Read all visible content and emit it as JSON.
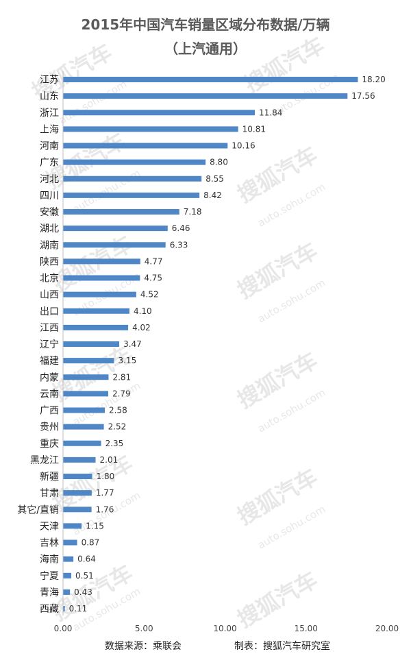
{
  "chart_data": {
    "type": "bar",
    "orientation": "horizontal",
    "title": "2015年中国汽车销量区域分布数据/万辆",
    "subtitle": "（上汽通用）",
    "categories": [
      "江苏",
      "山东",
      "浙江",
      "上海",
      "河南",
      "广东",
      "河北",
      "四川",
      "安徽",
      "湖北",
      "湖南",
      "陕西",
      "北京",
      "山西",
      "出口",
      "江西",
      "辽宁",
      "福建",
      "内蒙",
      "云南",
      "广西",
      "贵州",
      "重庆",
      "黑龙江",
      "新疆",
      "甘肃",
      "其它/直销",
      "天津",
      "吉林",
      "海南",
      "宁夏",
      "青海",
      "西藏"
    ],
    "values": [
      18.2,
      17.56,
      11.84,
      10.81,
      10.16,
      8.8,
      8.55,
      8.42,
      7.18,
      6.46,
      6.33,
      4.77,
      4.75,
      4.52,
      4.1,
      4.02,
      3.47,
      3.15,
      2.81,
      2.79,
      2.58,
      2.52,
      2.35,
      2.01,
      1.8,
      1.77,
      1.76,
      1.15,
      0.87,
      0.64,
      0.51,
      0.43,
      0.11
    ],
    "value_labels": [
      "18.20",
      "17.56",
      "11.84",
      "10.81",
      "10.16",
      "8.80",
      "8.55",
      "8.42",
      "7.18",
      "6.46",
      "6.33",
      "4.77",
      "4.75",
      "4.52",
      "4.10",
      "4.02",
      "3.47",
      "3.15",
      "2.81",
      "2.79",
      "2.58",
      "2.52",
      "2.35",
      "2.01",
      "1.80",
      "1.77",
      "1.76",
      "1.15",
      "0.87",
      "0.64",
      "0.51",
      "0.43",
      "0.11"
    ],
    "xticks": [
      "0.00",
      "5.00",
      "10.00",
      "15.00",
      "20.00"
    ],
    "xlim": [
      0,
      20
    ],
    "grid": false,
    "bar_color": "#4f86c6"
  },
  "footer": {
    "source": "数据来源：乘联会",
    "maker": "制表：搜狐汽车研究室"
  },
  "watermark": {
    "brand": "搜狐汽车",
    "site": "auto.sohu.com"
  }
}
